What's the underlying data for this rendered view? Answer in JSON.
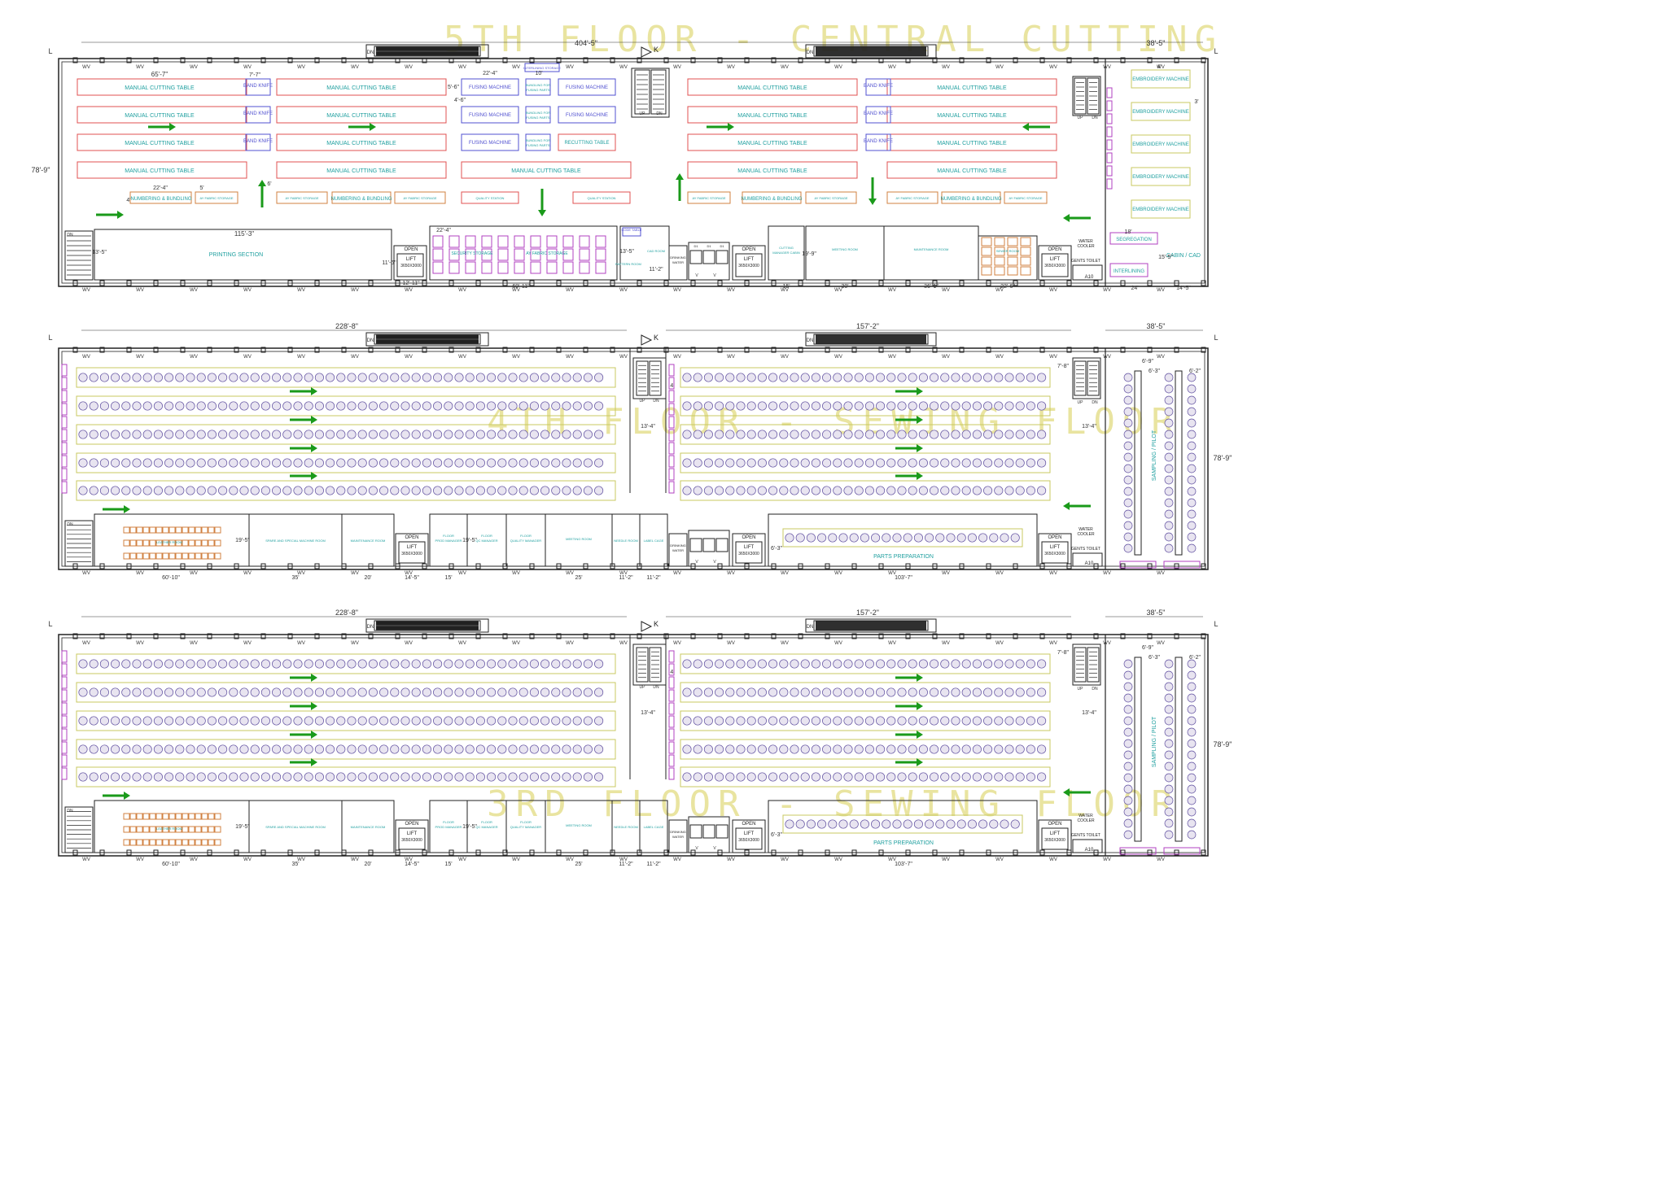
{
  "colors": {
    "wall": "#222222",
    "cutting_table": "#e05050",
    "fusing": "#5050d0",
    "label": "#20a0a0",
    "arrow": "#1a9a1a",
    "title": "#e9e4a0",
    "purple": "#b040c0",
    "orange": "#d08040",
    "olive": "#c8c860",
    "dim": "#333333"
  },
  "floors": [
    {
      "id": "5th",
      "title": "5TH FLOOR - CENTRAL CUTTING",
      "dims": {
        "total_width": "404'-5\"",
        "east_width": "38'-5\"",
        "height": "78'-9\"",
        "table_len": "65'-7\"",
        "stor_len": "22'-4\"",
        "gap1": "7'-7\"",
        "gap5": "5'",
        "gap6": "6'",
        "fus_w": "22'-4\"",
        "fus_gap": "10'",
        "fus_h1": "5'-6\"",
        "fus_h2": "4'-6\"",
        "print_w": "115'-3\"",
        "print_h": "13'-5\"",
        "store_w": "22'-4\"",
        "lift_h": "11'-6\"",
        "lift_w": "12'-11\"",
        "store_len": "69'-11\"",
        "pat": "13'-5\"",
        "cad": "11'-2\"",
        "meet": "19'-9\"",
        "r15": "15'",
        "r30": "30'",
        "r36": "36'-1\"",
        "r22": "22'-6\"",
        "e24": "24'",
        "e14": "14'-5\"",
        "seg": "18'",
        "e15": "15'-5\"",
        "e4": "4'",
        "e3": "3'"
      },
      "labels": {
        "manual_cutting_table": "MANUAL CUTTING TABLE",
        "band_knife": "BAND KNIFE",
        "fusing_machine": "FUSING MACHINE",
        "bundling_for_fusing": "BUNDLING FOR FUSING PARTS",
        "recutting_table": "RECUTTING TABLE",
        "numbering_bundling": "NUMBERING & BUNDLING",
        "ay_fabric_storage": "AY FABRIC STORAGE",
        "quality_station": "QUALITY STATION",
        "interlining_storage": "INTERLINING STORAGE",
        "printing_section": "PRINTING SECTION",
        "security_storage": "SECURITY STORAGE",
        "ay_storage": "AY FABRIC STORAGE",
        "code_table": "CODE TABLE",
        "pattern_room": "PATTERN ROOM",
        "cad_room": "CAD ROOM",
        "drinking_water": "DRINKING WATER",
        "open": "OPEN",
        "lift": "LIFT",
        "lift_size": "3650X3000",
        "cutting_manager": "CUTTING MANAGER CABIN",
        "meeting_room": "MEETING ROOM",
        "maintenance_room": "MAINTENANCE ROOM",
        "sewer_room": "SEWER ROOM",
        "water_cooler": "WATER COOLER",
        "gents_toilet": "GENTS TOILET",
        "embroidery": "EMBROIDERY MACHINE",
        "segregation": "SEGREGATION",
        "interlining": "INTERLINING",
        "cabin_cad": "CABIN / CAD",
        "dn": "DN",
        "up": "UP",
        "k": "K",
        "l": "L",
        "wv": "WV",
        "v": "V",
        "d1": "D1",
        "d2": "D2",
        "a10": "A10",
        "ladies_toilet": "LADIES TOILET",
        "gents_toilet_s": "GENTS TOILET"
      }
    },
    {
      "id": "4th",
      "title": "4TH FLOOR - SEWING FLOOR",
      "dims": {
        "w1": "228'-8\"",
        "w2": "157'-2\"",
        "east_width": "38'-5\"",
        "height": "78'-9\"",
        "c1": "13'-4\"",
        "c2": "13'-4\"",
        "d7": "7'-8\"",
        "d4": "4'",
        "s1": "6'-9\"",
        "s2": "6'-3\"",
        "s3": "6'-2\"",
        "r19": "19'-5\"",
        "r60": "60'-10\"",
        "r35": "35'",
        "r20": "20'",
        "r14": "14'-5\"",
        "r15": "15'",
        "r25": "25'",
        "r11": "11'-2\"",
        "r11b": "11'-2\"",
        "r103": "103'-7\"",
        "r6": "6'-3\""
      },
      "labels": {
        "leather_room": "LEATHER ROOM",
        "spare_special": "SPARE AND SPECIAL MACHINE ROOM",
        "maintenance": "MAINTENANCE ROOM",
        "floor_prod": "FLOOR PROD MANAGER",
        "floor_qc": "FLOOR QC MANAGER",
        "floor_quality": "FLOOR QUALITY MANAGER",
        "meeting_room": "MEETING ROOM",
        "needle_room": "NEEDLE ROOM",
        "label_cage": "LABEL CAGE",
        "drinking_water": "DRINKING WATER",
        "parts_preparation": "PARTS PREPARATION",
        "sampling_pilot": "SAMPLING / PILOT",
        "open": "OPEN",
        "lift": "LIFT",
        "lift_size": "3650X3000",
        "water_cooler": "WATER COOLER",
        "gents_toilet": "GENTS TOILET",
        "dn": "DN",
        "up": "UP",
        "k": "K",
        "l": "L",
        "wv": "WV",
        "v": "V",
        "a10": "A10"
      }
    },
    {
      "id": "3rd",
      "title": "3RD FLOOR - SEWING FLOOR",
      "dims": {
        "w1": "228'-8\"",
        "w2": "157'-2\"",
        "east_width": "38'-5\"",
        "height": "78'-9\"",
        "c1": "13'-4\"",
        "c2": "13'-4\"",
        "d7": "7'-8\"",
        "d4": "4'",
        "s1": "6'-9\"",
        "s2": "6'-3\"",
        "s3": "6'-2\"",
        "r19": "19'-5\"",
        "r60": "60'-10\"",
        "r35": "35'",
        "r20": "20'",
        "r14": "14'-5\"",
        "r15": "15'",
        "r25": "25'",
        "r11": "11'-2\"",
        "r11b": "11'-2\"",
        "r103": "103'-7\"",
        "r6": "6'-3\""
      },
      "labels": {
        "leather_room": "LEATHER ROOM",
        "spare_special": "SPARE AND SPECIAL MACHINE ROOM",
        "maintenance": "MAINTENANCE ROOM",
        "floor_prod": "FLOOR PROD MANAGER",
        "floor_qc": "FLOOR QC MANAGER",
        "floor_quality": "FLOOR QUALITY MANAGER",
        "meeting_room": "MEETING ROOM",
        "needle_room": "NEEDLE ROOM",
        "label_cage": "LABEL CAGE",
        "drinking_water": "DRINKING WATER",
        "parts_preparation": "PARTS PREPARATION",
        "sampling_pilot": "SAMPLING / PILOT",
        "open": "OPEN",
        "lift": "LIFT",
        "lift_size": "3650X3000",
        "water_cooler": "WATER COOLER",
        "gents_toilet": "GENTS TOILET",
        "dn": "DN",
        "up": "UP",
        "k": "K",
        "l": "L",
        "wv": "WV",
        "v": "V",
        "a10": "A10"
      }
    }
  ]
}
